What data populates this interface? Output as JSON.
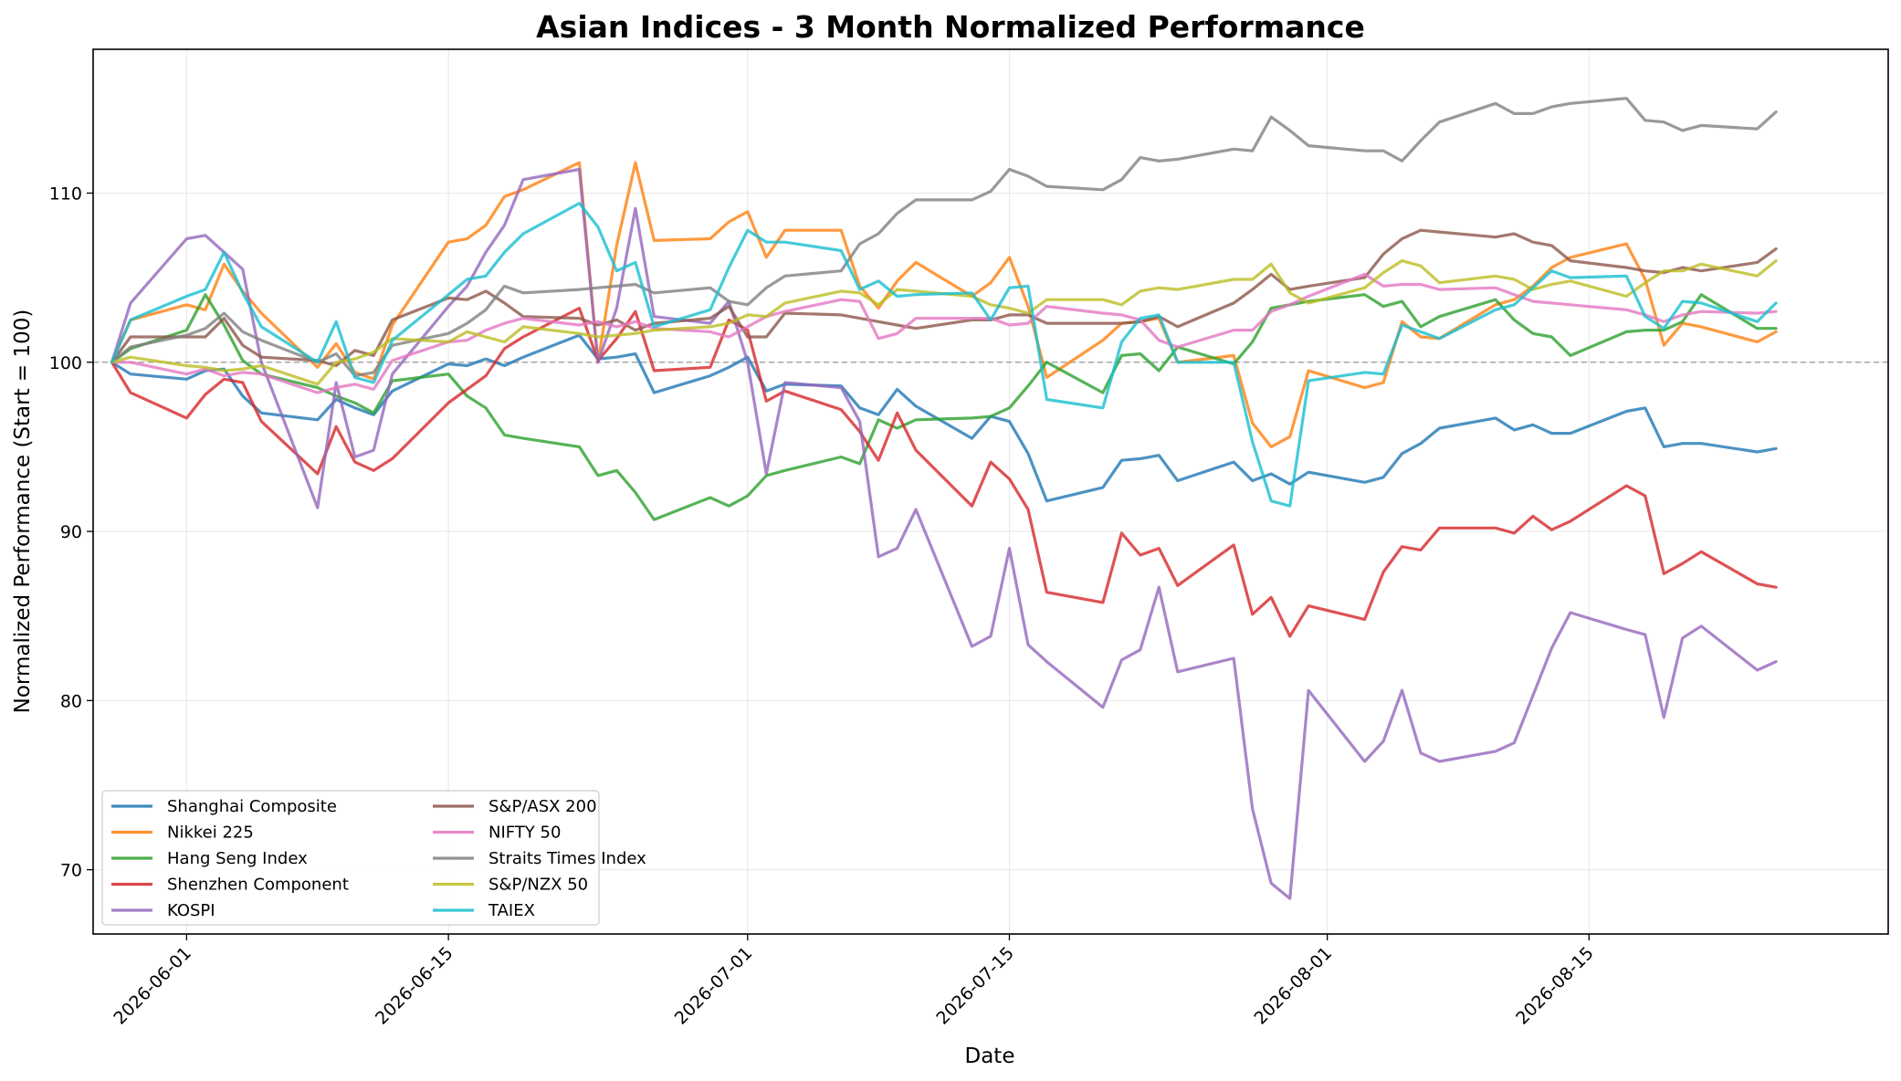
{
  "chart_data": {
    "type": "line",
    "title": "Asian Indices - 3 Month Normalized Performance",
    "xlabel": "Date",
    "ylabel": "Normalized Performance (Start = 100)",
    "x_range": [
      "2026-05-27",
      "2026-08-31"
    ],
    "ylim": [
      66.2,
      118.5
    ],
    "x_ticks": [
      "2026-06-01",
      "2026-06-15",
      "2026-07-01",
      "2026-07-15",
      "2026-08-01",
      "2026-08-15"
    ],
    "y_ticks": [
      70,
      80,
      90,
      100,
      110
    ],
    "reference_line": 100,
    "grid": true,
    "legend": "lower-left",
    "x": [
      "2026-05-28",
      "2026-05-29",
      "2026-06-01",
      "2026-06-02",
      "2026-06-03",
      "2026-06-04",
      "2026-06-05",
      "2026-06-08",
      "2026-06-09",
      "2026-06-10",
      "2026-06-11",
      "2026-06-12",
      "2026-06-15",
      "2026-06-16",
      "2026-06-17",
      "2026-06-18",
      "2026-06-19",
      "2026-06-22",
      "2026-06-23",
      "2026-06-24",
      "2026-06-25",
      "2026-06-26",
      "2026-06-29",
      "2026-06-30",
      "2026-07-01",
      "2026-07-02",
      "2026-07-03",
      "2026-07-06",
      "2026-07-07",
      "2026-07-08",
      "2026-07-09",
      "2026-07-10",
      "2026-07-13",
      "2026-07-14",
      "2026-07-15",
      "2026-07-16",
      "2026-07-17",
      "2026-07-20",
      "2026-07-21",
      "2026-07-22",
      "2026-07-23",
      "2026-07-24",
      "2026-07-27",
      "2026-07-28",
      "2026-07-29",
      "2026-07-30",
      "2026-07-31",
      "2026-08-03",
      "2026-08-04",
      "2026-08-05",
      "2026-08-06",
      "2026-08-07",
      "2026-08-10",
      "2026-08-11",
      "2026-08-12",
      "2026-08-13",
      "2026-08-14",
      "2026-08-17",
      "2026-08-18",
      "2026-08-19",
      "2026-08-20",
      "2026-08-21",
      "2026-08-24",
      "2026-08-25"
    ],
    "series": [
      {
        "name": "Shanghai Composite",
        "color": "#1f77b4",
        "values": [
          100,
          99.3,
          99.0,
          99.5,
          99.6,
          98.0,
          97.0,
          96.6,
          97.8,
          97.3,
          96.9,
          98.3,
          99.9,
          99.8,
          100.2,
          99.8,
          100.3,
          101.6,
          100.2,
          100.3,
          100.5,
          98.2,
          99.2,
          99.7,
          100.3,
          98.3,
          98.7,
          98.6,
          97.3,
          96.9,
          98.4,
          97.4,
          95.5,
          96.8,
          96.5,
          94.6,
          91.8,
          92.6,
          94.2,
          94.3,
          94.5,
          93.0,
          94.1,
          93.0,
          93.4,
          92.8,
          93.5,
          92.9,
          93.2,
          94.6,
          95.2,
          96.1,
          96.7,
          96.0,
          96.3,
          95.8,
          95.8,
          97.1,
          97.3,
          95.0,
          95.2,
          95.2,
          94.7,
          94.9
        ]
      },
      {
        "name": "Nikkei 225",
        "color": "#ff7f0e",
        "values": [
          100,
          102.5,
          103.4,
          103.1,
          105.8,
          104.2,
          102.9,
          99.7,
          101.1,
          99.4,
          99.0,
          102.2,
          107.1,
          107.3,
          108.1,
          109.8,
          110.2,
          111.8,
          100.0,
          106.9,
          111.8,
          107.2,
          107.3,
          108.3,
          108.9,
          106.2,
          107.8,
          107.8,
          104.5,
          103.2,
          104.8,
          105.9,
          103.9,
          104.7,
          106.2,
          103.3,
          99.1,
          101.3,
          102.3,
          102.4,
          102.6,
          100.0,
          100.4,
          96.4,
          95.0,
          95.6,
          99.5,
          98.5,
          98.8,
          102.4,
          101.5,
          101.4,
          103.4,
          103.7,
          104.5,
          105.6,
          106.2,
          107.0,
          104.9,
          101.0,
          102.3,
          102.1,
          101.2,
          101.8
        ]
      },
      {
        "name": "Hang Seng Index",
        "color": "#2ca02c",
        "values": [
          100,
          100.8,
          101.9,
          104.0,
          102.2,
          100.1,
          99.3,
          98.5,
          98.0,
          97.6,
          97.0,
          98.9,
          99.3,
          98.0,
          97.3,
          95.7,
          95.5,
          95.0,
          93.3,
          93.6,
          92.3,
          90.7,
          92.0,
          91.5,
          92.1,
          93.3,
          93.6,
          94.4,
          94.0,
          96.6,
          96.1,
          96.6,
          96.7,
          96.8,
          97.3,
          98.6,
          100.0,
          98.2,
          100.4,
          100.5,
          99.5,
          100.9,
          99.9,
          101.2,
          103.2,
          103.4,
          103.6,
          104.0,
          103.3,
          103.6,
          102.1,
          102.7,
          103.7,
          102.5,
          101.7,
          101.5,
          100.4,
          101.8,
          101.9,
          101.9,
          102.4,
          104.0,
          102.0,
          102.0
        ]
      },
      {
        "name": "Shenzhen Component",
        "color": "#d62728",
        "values": [
          100,
          98.2,
          96.7,
          98.1,
          99.0,
          98.8,
          96.5,
          93.4,
          96.2,
          94.1,
          93.6,
          94.3,
          97.6,
          98.4,
          99.2,
          100.8,
          101.5,
          103.2,
          100.1,
          101.4,
          103.0,
          99.5,
          99.7,
          102.5,
          101.9,
          97.7,
          98.3,
          97.2,
          95.9,
          94.2,
          97.0,
          94.8,
          91.5,
          94.1,
          93.1,
          91.3,
          86.4,
          85.8,
          89.9,
          88.6,
          89.0,
          86.8,
          89.2,
          85.1,
          86.1,
          83.8,
          85.6,
          84.8,
          87.6,
          89.1,
          88.9,
          90.2,
          90.2,
          89.9,
          90.9,
          90.1,
          90.6,
          92.7,
          92.1,
          87.5,
          88.1,
          88.8,
          86.9,
          86.7
        ]
      },
      {
        "name": "KOSPI",
        "color": "#9467bd",
        "values": [
          100,
          103.5,
          107.3,
          107.5,
          106.5,
          105.5,
          100.0,
          91.4,
          98.8,
          94.4,
          94.8,
          99.3,
          103.3,
          104.5,
          106.5,
          108.1,
          110.8,
          111.4,
          100.0,
          103.2,
          109.1,
          102.7,
          102.3,
          103.6,
          100.0,
          93.4,
          98.8,
          98.5,
          96.5,
          88.5,
          89.0,
          91.3,
          83.2,
          83.8,
          89.0,
          83.3,
          82.3,
          79.6,
          82.4,
          83.0,
          86.7,
          81.7,
          82.5,
          73.6,
          69.2,
          68.3,
          80.6,
          76.4,
          77.6,
          80.6,
          76.9,
          76.4,
          77.0,
          77.5,
          80.3,
          83.1,
          85.2,
          84.2,
          83.9,
          79.0,
          83.7,
          84.4,
          81.8,
          82.3
        ]
      },
      {
        "name": "S&P/ASX 200",
        "color": "#8c564b",
        "values": [
          100,
          101.5,
          101.5,
          101.5,
          102.6,
          101.0,
          100.3,
          100.1,
          99.8,
          100.7,
          100.4,
          102.5,
          103.8,
          103.7,
          104.2,
          103.5,
          102.7,
          102.6,
          102.2,
          102.5,
          101.9,
          102.3,
          102.6,
          103.3,
          101.5,
          101.5,
          102.9,
          102.8,
          102.6,
          102.4,
          102.2,
          102.0,
          102.5,
          102.5,
          102.8,
          102.8,
          102.3,
          102.3,
          102.3,
          102.4,
          102.7,
          102.1,
          103.5,
          104.3,
          105.2,
          104.3,
          104.5,
          105.0,
          106.4,
          107.3,
          107.8,
          107.7,
          107.4,
          107.6,
          107.1,
          106.9,
          106.0,
          105.6,
          105.4,
          105.3,
          105.6,
          105.4,
          105.9,
          106.7
        ]
      },
      {
        "name": "NIFTY 50",
        "color": "#e377c2",
        "values": [
          100,
          100.0,
          99.3,
          99.6,
          99.2,
          99.4,
          99.3,
          98.2,
          98.5,
          98.7,
          98.4,
          100.1,
          101.2,
          101.3,
          101.9,
          102.3,
          102.6,
          102.2,
          102.4,
          102.1,
          102.4,
          102.0,
          101.8,
          101.5,
          102.1,
          102.7,
          103.0,
          103.7,
          103.6,
          101.4,
          101.7,
          102.6,
          102.6,
          102.6,
          102.2,
          102.3,
          103.3,
          102.9,
          102.8,
          102.5,
          101.3,
          100.9,
          101.9,
          101.9,
          103.0,
          103.4,
          103.9,
          105.2,
          104.5,
          104.6,
          104.6,
          104.3,
          104.4,
          104.0,
          103.6,
          103.5,
          103.4,
          103.1,
          102.8,
          102.4,
          102.8,
          103.0,
          102.9,
          103.0
        ]
      },
      {
        "name": "Straits Times Index",
        "color": "#7f7f7f",
        "values": [
          100,
          100.9,
          101.6,
          102.0,
          102.9,
          101.8,
          101.3,
          100.0,
          100.5,
          99.2,
          99.4,
          101.0,
          101.7,
          102.3,
          103.1,
          104.5,
          104.1,
          104.3,
          104.4,
          104.5,
          104.6,
          104.1,
          104.4,
          103.6,
          103.4,
          104.4,
          105.1,
          105.4,
          107.0,
          107.6,
          108.8,
          109.6,
          109.6,
          110.1,
          111.4,
          111.0,
          110.4,
          110.2,
          110.8,
          112.1,
          111.9,
          112.0,
          112.6,
          112.5,
          114.5,
          113.7,
          112.8,
          112.5,
          112.5,
          111.9,
          113.1,
          114.2,
          115.3,
          114.7,
          114.7,
          115.1,
          115.3,
          115.6,
          114.3,
          114.2,
          113.7,
          114.0,
          113.8,
          114.8
        ]
      },
      {
        "name": "S&P/NZX 50",
        "color": "#bcbd22",
        "values": [
          100,
          100.3,
          99.8,
          99.7,
          99.5,
          99.6,
          99.8,
          98.7,
          100.0,
          100.2,
          100.6,
          101.4,
          101.2,
          101.8,
          101.5,
          101.2,
          102.1,
          101.7,
          101.5,
          101.6,
          101.7,
          101.9,
          102.1,
          102.3,
          102.8,
          102.7,
          103.5,
          104.2,
          104.1,
          103.4,
          104.3,
          104.2,
          103.9,
          103.4,
          103.2,
          102.9,
          103.7,
          103.7,
          103.4,
          104.2,
          104.4,
          104.3,
          104.9,
          104.9,
          105.8,
          104.1,
          103.5,
          104.4,
          105.3,
          106.0,
          105.7,
          104.7,
          105.1,
          104.9,
          104.3,
          104.6,
          104.8,
          103.9,
          104.7,
          105.4,
          105.4,
          105.8,
          105.1,
          106.0
        ]
      },
      {
        "name": "TAIEX",
        "color": "#17becf",
        "values": [
          100,
          102.5,
          103.9,
          104.3,
          106.5,
          104.1,
          102.1,
          100.0,
          102.4,
          99.1,
          98.8,
          101.3,
          104.0,
          104.9,
          105.1,
          106.5,
          107.6,
          109.4,
          108.0,
          105.4,
          105.9,
          102.1,
          103.1,
          105.6,
          107.8,
          107.1,
          107.1,
          106.6,
          104.3,
          104.8,
          103.9,
          104.0,
          104.1,
          102.5,
          104.4,
          104.5,
          97.8,
          97.3,
          101.2,
          102.6,
          102.8,
          100.0,
          100.0,
          95.3,
          91.8,
          91.5,
          98.9,
          99.4,
          99.3,
          102.2,
          101.8,
          101.4,
          103.1,
          103.4,
          104.4,
          105.4,
          105.0,
          105.1,
          102.7,
          102.0,
          103.6,
          103.5,
          102.4,
          103.5
        ]
      }
    ]
  }
}
